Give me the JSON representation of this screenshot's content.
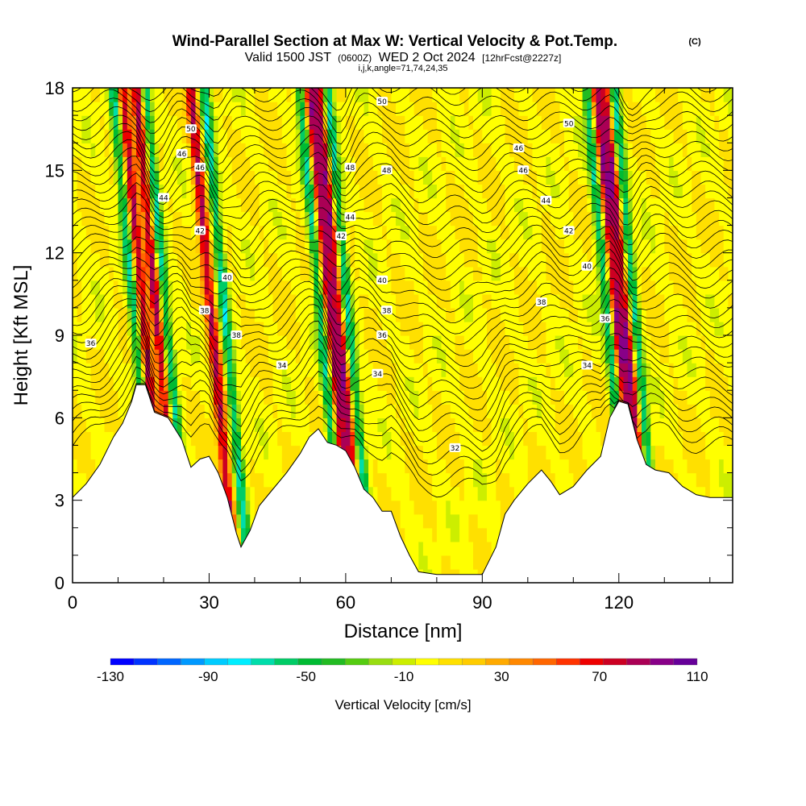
{
  "header": {
    "title": "Wind-Parallel Section at Max W: Vertical Velocity & Pot.Temp.",
    "copyright": "(C)",
    "valid_prefix": "Valid 1500 JST",
    "valid_utc": "(0600Z)",
    "valid_date": "WED 2 Oct 2024",
    "forecast": "[12hrFcst@2227z]",
    "grid_info": "i,j,k,angle=71,74,24,35"
  },
  "chart_data": {
    "type": "heatmap",
    "xlabel": "Distance [nm]",
    "ylabel": "Height [Kft MSL]",
    "xlim": [
      0,
      145
    ],
    "ylim": [
      0,
      18
    ],
    "xticks": [
      0,
      30,
      60,
      90,
      120
    ],
    "yticks": [
      0,
      3,
      6,
      9,
      12,
      15,
      18
    ],
    "colorbar": {
      "label": "Vertical Velocity [cm/s]",
      "ticks": [
        -130,
        -90,
        -50,
        -10,
        30,
        70,
        110
      ],
      "min": -130,
      "max": 110,
      "step": 10,
      "colors": [
        "#0000ff",
        "#0033ff",
        "#0066ff",
        "#0099ff",
        "#00ccff",
        "#00eeff",
        "#00ddaa",
        "#00cc66",
        "#00bb33",
        "#22bb22",
        "#55cc11",
        "#99dd11",
        "#ccee00",
        "#ffff00",
        "#ffe000",
        "#ffcc00",
        "#ffaa00",
        "#ff8800",
        "#ff6600",
        "#ff3300",
        "#ee0000",
        "#cc0022",
        "#aa0055",
        "#880088",
        "#660099"
      ]
    },
    "updrafts_nm": [
      17,
      20,
      32,
      58,
      60,
      121,
      123
    ],
    "downdrafts_nm": [
      15,
      22,
      35,
      56,
      62,
      119,
      125
    ],
    "terrain": [
      [
        0,
        3.1
      ],
      [
        3,
        3.6
      ],
      [
        6,
        4.3
      ],
      [
        9,
        5.3
      ],
      [
        11,
        5.8
      ],
      [
        13,
        6.6
      ],
      [
        14,
        7.2
      ],
      [
        16,
        7.2
      ],
      [
        18,
        6.2
      ],
      [
        21,
        6.0
      ],
      [
        24,
        5.2
      ],
      [
        26,
        4.2
      ],
      [
        28,
        4.5
      ],
      [
        30,
        4.6
      ],
      [
        32,
        4.0
      ],
      [
        34,
        3.1
      ],
      [
        36,
        1.8
      ],
      [
        37,
        1.3
      ],
      [
        39,
        1.9
      ],
      [
        41,
        2.8
      ],
      [
        44,
        3.4
      ],
      [
        47,
        4.0
      ],
      [
        50,
        4.7
      ],
      [
        52,
        5.3
      ],
      [
        54,
        5.6
      ],
      [
        56,
        5.1
      ],
      [
        58,
        5.0
      ],
      [
        60,
        4.8
      ],
      [
        62,
        4.2
      ],
      [
        64,
        3.4
      ],
      [
        66,
        3.1
      ],
      [
        68,
        2.6
      ],
      [
        70,
        2.6
      ],
      [
        72,
        1.7
      ],
      [
        74,
        1.0
      ],
      [
        76,
        0.4
      ],
      [
        80,
        0.3
      ],
      [
        85,
        0.3
      ],
      [
        90,
        0.3
      ],
      [
        93,
        1.3
      ],
      [
        95,
        2.5
      ],
      [
        97,
        3.0
      ],
      [
        100,
        3.6
      ],
      [
        103,
        4.1
      ],
      [
        105,
        3.7
      ],
      [
        107,
        3.2
      ],
      [
        110,
        3.5
      ],
      [
        113,
        4.1
      ],
      [
        116,
        4.6
      ],
      [
        118,
        6.0
      ],
      [
        120,
        6.6
      ],
      [
        122,
        6.5
      ],
      [
        124,
        5.2
      ],
      [
        126,
        4.3
      ],
      [
        128,
        4.1
      ],
      [
        131,
        4.0
      ],
      [
        134,
        3.5
      ],
      [
        137,
        3.2
      ],
      [
        140,
        3.1
      ],
      [
        143,
        3.1
      ],
      [
        145,
        3.1
      ]
    ],
    "contour_labels": [
      {
        "text": "50",
        "x": 26,
        "y": 16.5
      },
      {
        "text": "46",
        "x": 24,
        "y": 15.6
      },
      {
        "text": "46",
        "x": 28,
        "y": 15.1
      },
      {
        "text": "44",
        "x": 20,
        "y": 14.0
      },
      {
        "text": "42",
        "x": 28,
        "y": 12.8
      },
      {
        "text": "40",
        "x": 34,
        "y": 11.1
      },
      {
        "text": "38",
        "x": 29,
        "y": 9.9
      },
      {
        "text": "38",
        "x": 36,
        "y": 9.0
      },
      {
        "text": "36",
        "x": 4,
        "y": 8.7
      },
      {
        "text": "34",
        "x": 46,
        "y": 7.9
      },
      {
        "text": "50",
        "x": 68,
        "y": 17.5
      },
      {
        "text": "48",
        "x": 61,
        "y": 15.1
      },
      {
        "text": "48",
        "x": 69,
        "y": 15.0
      },
      {
        "text": "44",
        "x": 61,
        "y": 13.3
      },
      {
        "text": "42",
        "x": 59,
        "y": 12.6
      },
      {
        "text": "40",
        "x": 68,
        "y": 11.0
      },
      {
        "text": "38",
        "x": 69,
        "y": 9.9
      },
      {
        "text": "36",
        "x": 68,
        "y": 9.0
      },
      {
        "text": "34",
        "x": 67,
        "y": 7.6
      },
      {
        "text": "32",
        "x": 84,
        "y": 4.9
      },
      {
        "text": "50",
        "x": 109,
        "y": 16.7
      },
      {
        "text": "46",
        "x": 98,
        "y": 15.8
      },
      {
        "text": "46",
        "x": 99,
        "y": 15.0
      },
      {
        "text": "44",
        "x": 104,
        "y": 13.9
      },
      {
        "text": "42",
        "x": 109,
        "y": 12.8
      },
      {
        "text": "40",
        "x": 113,
        "y": 11.5
      },
      {
        "text": "38",
        "x": 103,
        "y": 10.2
      },
      {
        "text": "36",
        "x": 117,
        "y": 9.6
      },
      {
        "text": "34",
        "x": 113,
        "y": 7.9
      }
    ]
  }
}
